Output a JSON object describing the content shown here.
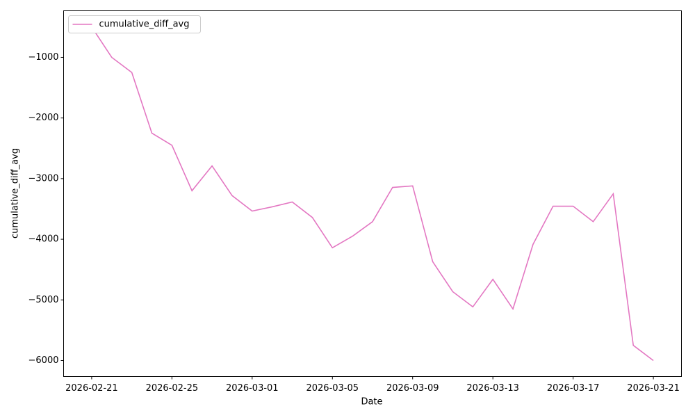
{
  "chart_data": {
    "type": "line",
    "x_label": "Date",
    "y_label": "cumulative_diff_avg",
    "x": [
      "2026-02-21",
      "2026-02-22",
      "2026-02-23",
      "2026-02-24",
      "2026-02-25",
      "2026-02-26",
      "2026-02-27",
      "2026-02-28",
      "2026-03-01",
      "2026-03-02",
      "2026-03-03",
      "2026-03-04",
      "2026-03-05",
      "2026-03-06",
      "2026-03-07",
      "2026-03-08",
      "2026-03-09",
      "2026-03-10",
      "2026-03-11",
      "2026-03-12",
      "2026-03-13",
      "2026-03-14",
      "2026-03-15",
      "2026-03-16",
      "2026-03-17",
      "2026-03-18",
      "2026-03-19",
      "2026-03-20",
      "2026-03-21"
    ],
    "series": [
      {
        "name": "cumulative_diff_avg",
        "color": "#e377c2",
        "values": [
          -500,
          -1000,
          -1250,
          -2250,
          -2450,
          -3200,
          -2790,
          -3280,
          -3535,
          -3465,
          -3385,
          -3640,
          -4140,
          -3950,
          -3710,
          -3145,
          -3120,
          -4370,
          -4865,
          -5115,
          -4660,
          -5150,
          -4085,
          -3455,
          -3455,
          -3710,
          -3250,
          -5750,
          -6000
        ]
      }
    ],
    "xlim": [
      "2026-02-19T14:24",
      "2026-03-22T09:36"
    ],
    "xticks": [
      "2026-02-21",
      "2026-02-25",
      "2026-03-01",
      "2026-03-05",
      "2026-03-09",
      "2026-03-13",
      "2026-03-17",
      "2026-03-21"
    ],
    "ylim": [
      -6264,
      -232
    ],
    "yticks": [
      {
        "value": -6000,
        "label": "−6000"
      },
      {
        "value": -5000,
        "label": "−5000"
      },
      {
        "value": -4000,
        "label": "−4000"
      },
      {
        "value": -3000,
        "label": "−3000"
      },
      {
        "value": -2000,
        "label": "−2000"
      },
      {
        "value": -1000,
        "label": "−1000"
      }
    ],
    "legend": "upper left",
    "grid": false
  }
}
